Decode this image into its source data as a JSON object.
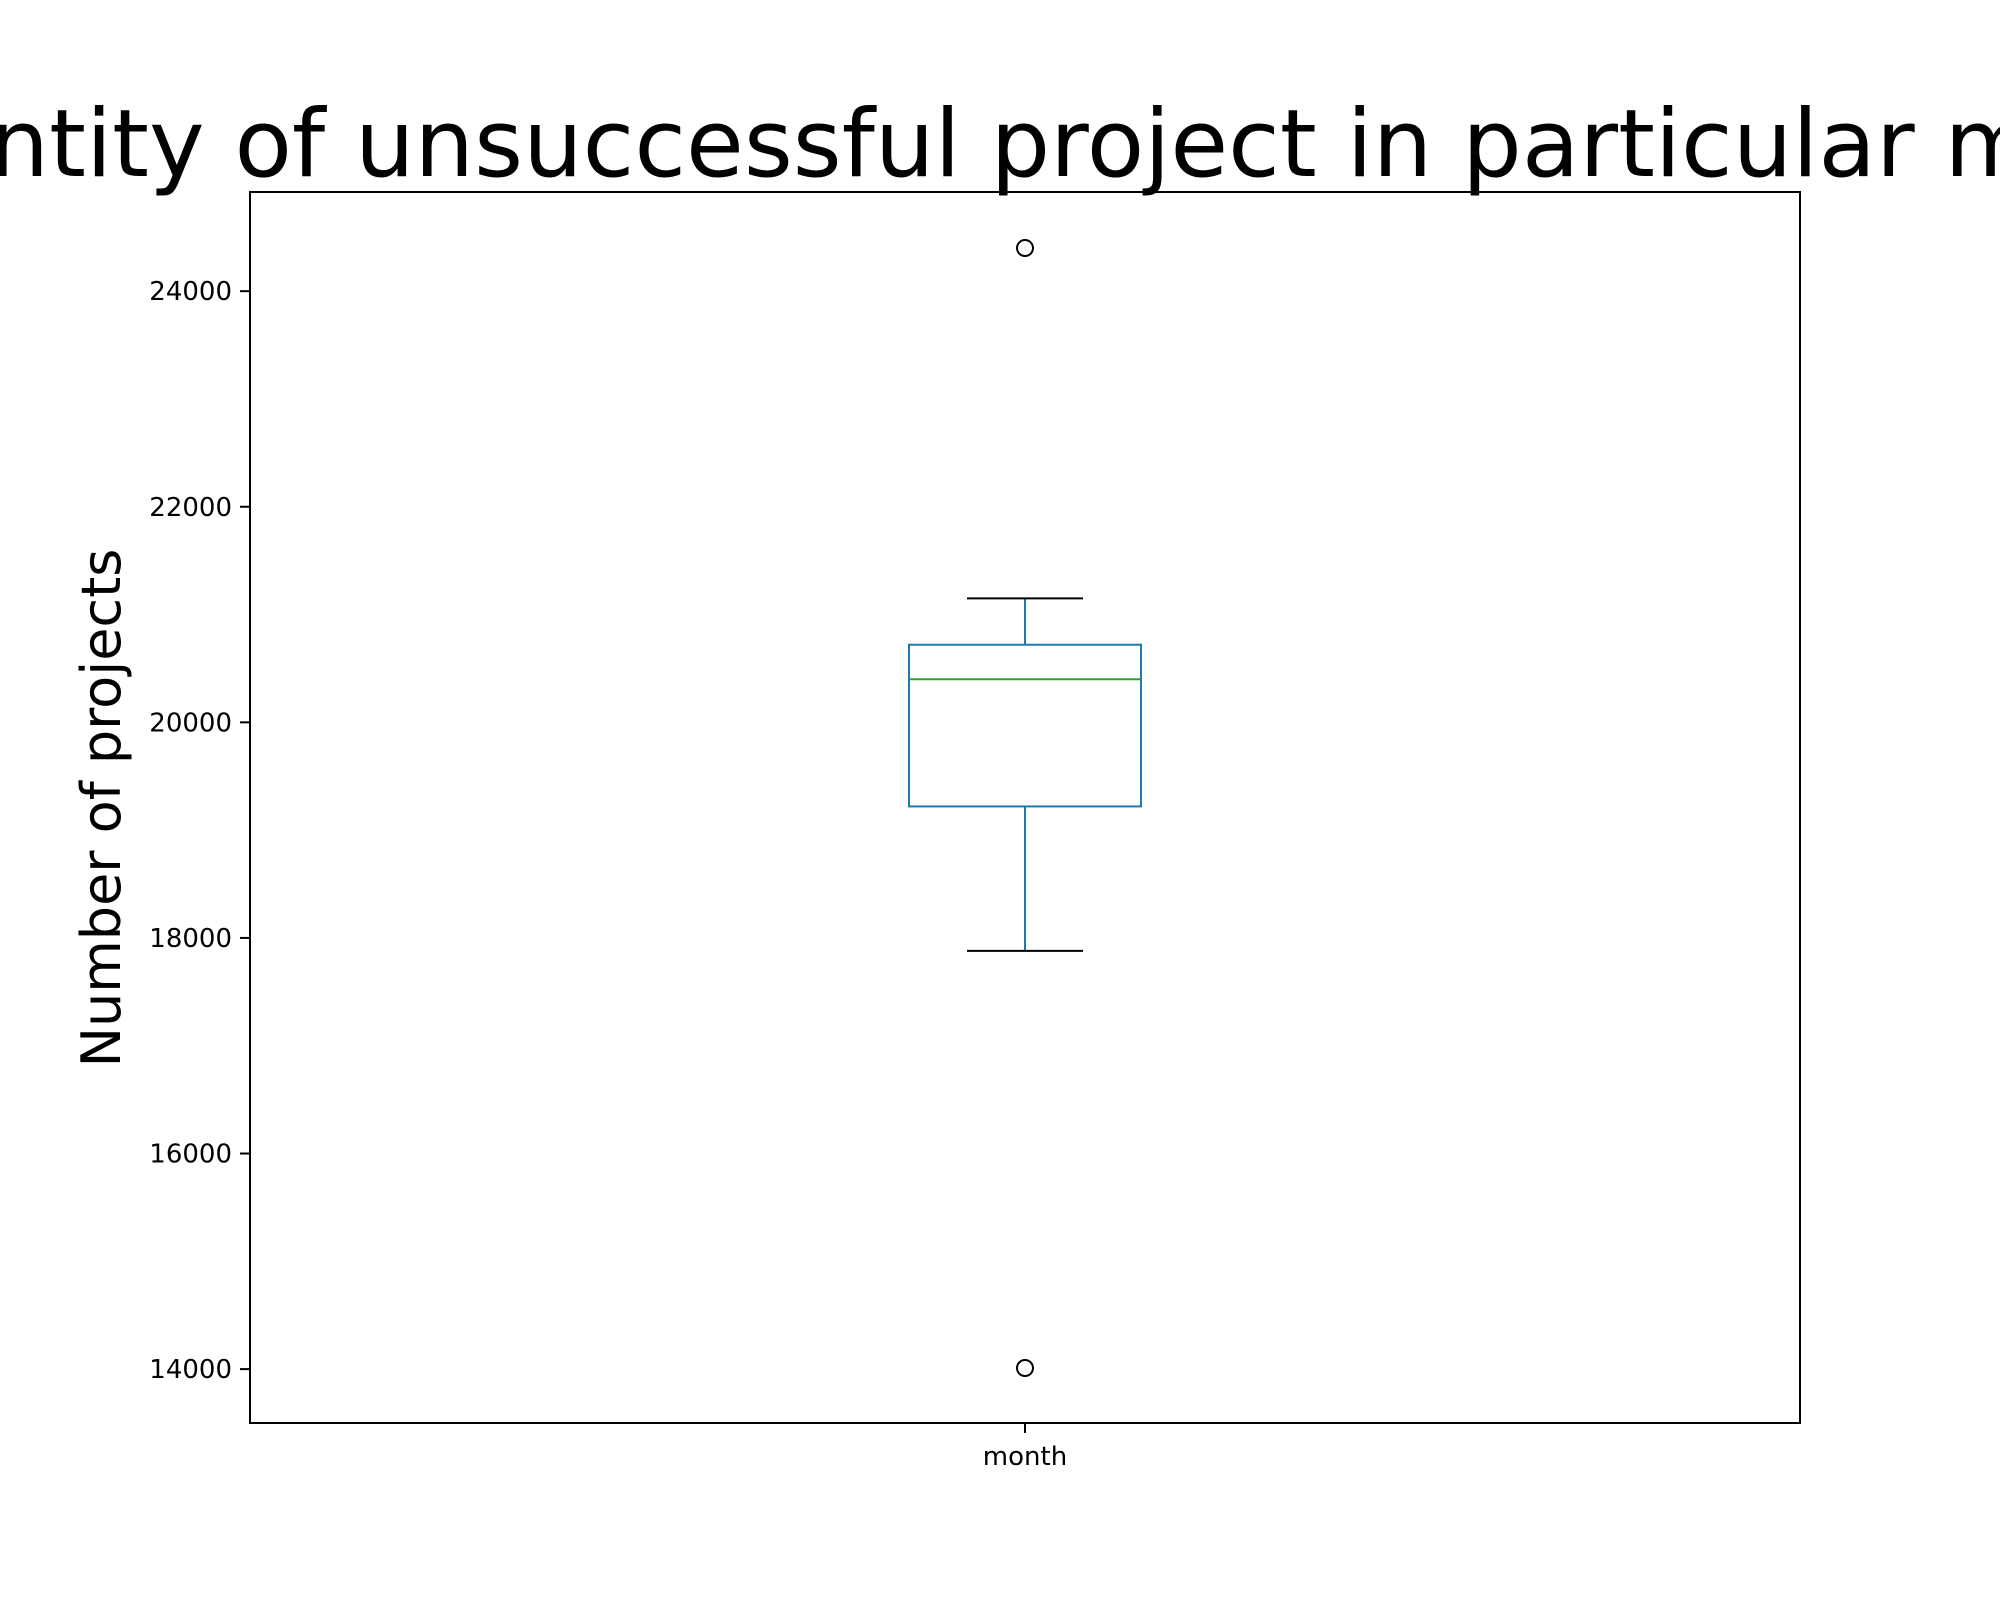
{
  "chart_data": {
    "type": "box",
    "title": "Quantity of unsuccessful project in particular month",
    "xlabel": "",
    "ylabel": "Number of projects",
    "categories": [
      "month"
    ],
    "box": {
      "whisker_low": 17880,
      "q1": 19220,
      "median": 20400,
      "q3": 20720,
      "whisker_high": 21150
    },
    "outliers": [
      24400,
      14010
    ],
    "yticks": [
      14000,
      16000,
      18000,
      20000,
      22000,
      24000
    ],
    "ylim": [
      13500,
      24920
    ],
    "grid": false,
    "colors": {
      "box": "#1f77b4",
      "median": "#2ca02c",
      "whisker_cap": "#000000",
      "outlier": "#000000"
    }
  }
}
